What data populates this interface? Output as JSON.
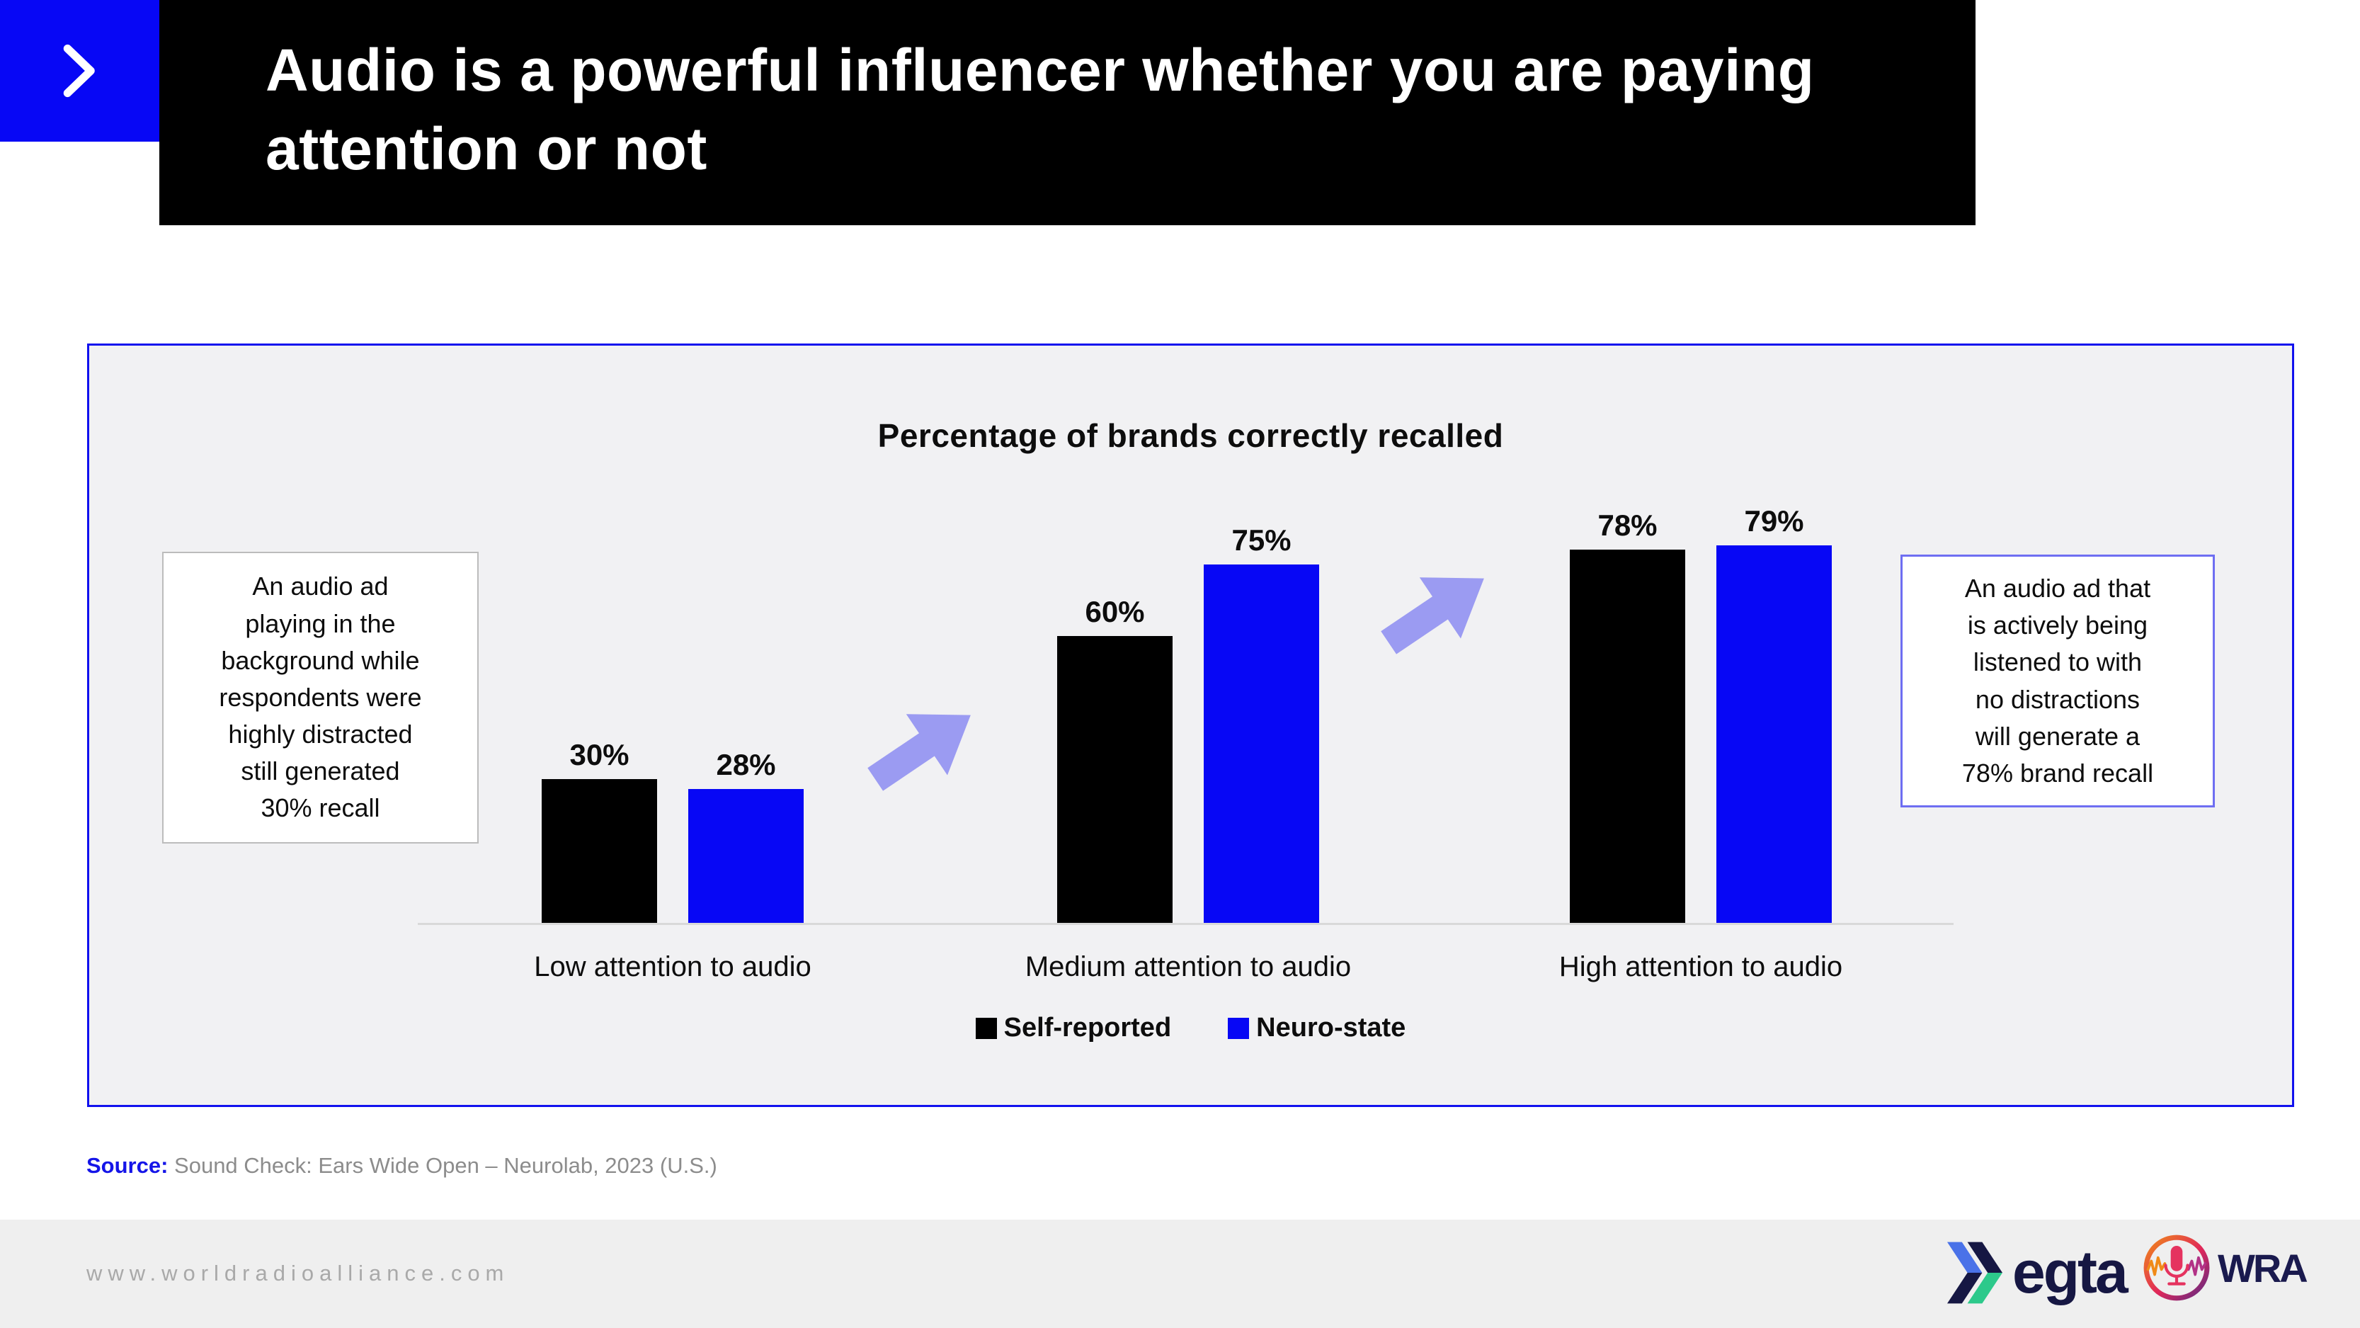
{
  "header": {
    "title": "Audio is a powerful influencer whether you are paying\nattention or not"
  },
  "chart_data": {
    "type": "bar",
    "title": "Percentage of brands correctly recalled",
    "categories": [
      "Low attention to audio",
      "Medium attention to audio",
      "High attention to audio"
    ],
    "series": [
      {
        "name": "Self-reported",
        "color": "#000000",
        "values": [
          30,
          60,
          78
        ]
      },
      {
        "name": "Neuro-state",
        "color": "#0707f5",
        "values": [
          28,
          75,
          79
        ]
      }
    ],
    "value_suffix": "%",
    "ylim": [
      0,
      100
    ],
    "grid": false,
    "legend_position": "bottom"
  },
  "callouts": {
    "left": "An audio ad\nplaying in the\nbackground while\nrespondents were\nhighly distracted\nstill generated\n30% recall",
    "right": "An audio ad that\nis actively being\nlistened to with\nno distractions\nwill generate a\n78% brand recall"
  },
  "source": {
    "label": "Source:",
    "text": " Sound Check: Ears Wide Open – Neurolab, 2023 (U.S.)"
  },
  "footer": {
    "url": "www.worldradioalliance.com",
    "egta_label": "egta",
    "wra_label": "WRA"
  },
  "colors": {
    "accent_blue": "#0707f5",
    "header_black": "#000000",
    "panel_background": "#f1f1f3",
    "panel_border": "#1111ee",
    "arrow_lilac": "#9b9bf2",
    "callout_border_left": "#bcbcbc",
    "callout_border_right": "#6e6ef2",
    "source_blue": "#1515e8",
    "footer_gray": "#efefef",
    "logo_navy": "#161743",
    "egta_blue": "#4a72e8",
    "egta_green": "#2dc98b",
    "wra_gradient_start": "#f08a18",
    "wra_gradient_end": "#5c2a8a"
  }
}
